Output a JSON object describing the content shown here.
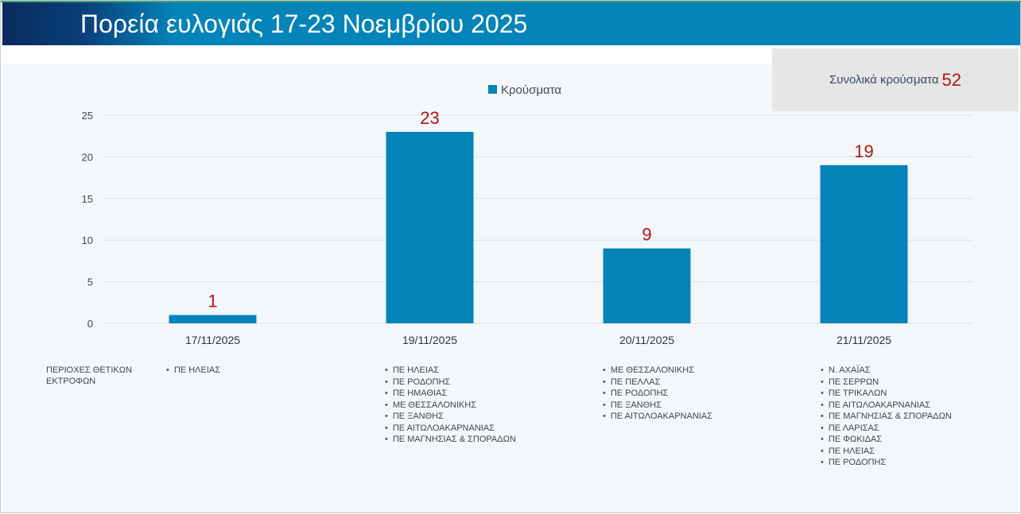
{
  "header": {
    "title": "Πορεία ευλογιάς 17-23 Νοεμβρίου 2025"
  },
  "summary": {
    "label": "Συνολικά κρούσματα",
    "value": "52"
  },
  "colors": {
    "bar": "#0484b8",
    "data_label": "#b01515",
    "grid": "#dde1e5"
  },
  "chart_data": {
    "type": "bar",
    "legend": "Κρούσματα",
    "legend_position": "top-center",
    "categories": [
      "17/11/2025",
      "19/11/2025",
      "20/11/2025",
      "21/11/2025"
    ],
    "values": [
      1,
      23,
      9,
      19
    ],
    "data_labels": [
      "1",
      "23",
      "9",
      "19"
    ],
    "yticks": [
      "0",
      "5",
      "10",
      "15",
      "20",
      "25"
    ],
    "ylim": [
      0,
      25
    ],
    "grid": true
  },
  "regions": {
    "label": "ΠΕΡΙΟΧΕΣ ΘΕΤΙΚΩΝ ΕΚΤΡΟΦΩΝ",
    "lists": [
      [
        "ΠΕ ΗΛΕΙΑΣ"
      ],
      [
        "ΠΕ ΗΛΕΙΑΣ",
        "ΠΕ ΡΟΔΟΠΗΣ",
        "ΠΕ ΗΜΑΘΙΑΣ",
        "ΜΕ ΘΕΣΣΑΛΟΝΙΚΗΣ",
        "ΠΕ ΞΑΝΘΗΣ",
        "ΠΕ ΑΙΤΩΛΟΑΚΑΡΝΑΝΙΑΣ",
        "ΠΕ ΜΑΓΝΗΣΙΑΣ & ΣΠΟΡΑΔΩΝ"
      ],
      [
        "ΜΕ ΘΕΣΣΑΛΟΝΙΚΗΣ",
        "ΠΕ ΠΕΛΛΑΣ",
        "ΠΕ ΡΟΔΟΠΗΣ",
        "ΠΕ ΞΑΝΘΗΣ",
        "ΠΕ ΑΙΤΩΛΟΑΚΑΡΝΑΝΙΑΣ"
      ],
      [
        "Ν. ΑΧΑΪΑΣ",
        "ΠΕ ΣΕΡΡΩΝ",
        "ΠΕ ΤΡΙΚΑΛΩΝ",
        "ΠΕ ΑΙΤΩΛΟΑΚΑΡΝΑΝΙΑΣ",
        "ΠΕ ΜΑΓΝΗΣΙΑΣ & ΣΠΟΡΑΔΩΝ",
        "ΠΕ ΛΑΡΙΣΑΣ",
        "ΠΕ ΦΩΚΙΔΑΣ",
        "ΠΕ ΗΛΕΙΑΣ",
        "ΠΕ ΡΟΔΟΠΗΣ"
      ]
    ]
  }
}
